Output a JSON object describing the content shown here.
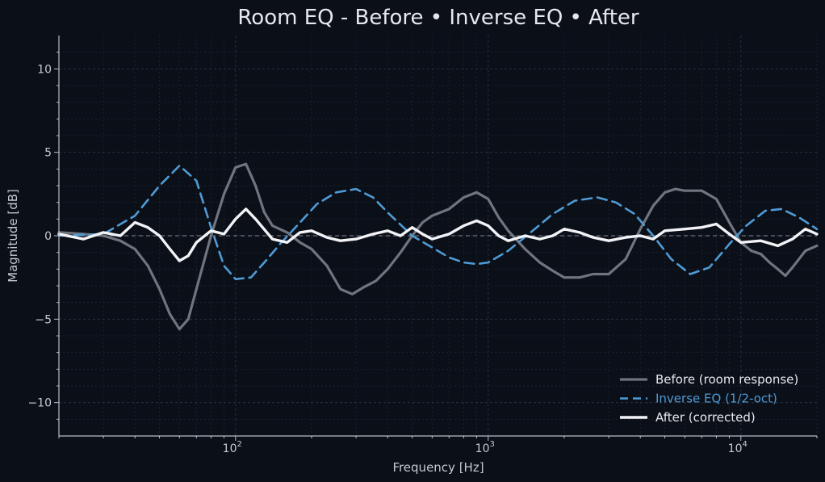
{
  "colors": {
    "background": "#0b0f17",
    "axes": "#b9bdc6",
    "text": "#e6e8ee",
    "tick_text": "#c5c9d1",
    "grid_major": "#263040",
    "grid_minor": "#1b2230",
    "zero_line": "#6b7280",
    "before": "#7a7f8a",
    "inverse": "#4f9bd6",
    "after": "#f2f3f6"
  },
  "chart_data": {
    "type": "line",
    "title": "Room EQ - Before • Inverse EQ • After",
    "xlabel": "Frequency [Hz]",
    "ylabel": "Magnitude [dB]",
    "xscale": "log",
    "xlim": [
      20,
      20000
    ],
    "ylim": [
      -12,
      12
    ],
    "x_major_ticks": [
      {
        "value": 100,
        "base": "10",
        "exp": "2"
      },
      {
        "value": 1000,
        "base": "10",
        "exp": "3"
      },
      {
        "value": 10000,
        "base": "10",
        "exp": "4"
      }
    ],
    "y_ticks": [
      {
        "value": 10,
        "label": "10"
      },
      {
        "value": 5,
        "label": "5"
      },
      {
        "value": 0,
        "label": "0"
      },
      {
        "value": -5,
        "label": "−5"
      },
      {
        "value": -10,
        "label": "−10"
      }
    ],
    "grid": true,
    "zero_reference_line": true,
    "legend_position": "lower-right",
    "series": [
      {
        "name": "Before (room response)",
        "style": "solid",
        "x": [
          20,
          25,
          30,
          35,
          40,
          45,
          50,
          55,
          60,
          65,
          70,
          80,
          90,
          100,
          110,
          120,
          130,
          140,
          160,
          180,
          200,
          230,
          260,
          290,
          320,
          360,
          400,
          450,
          500,
          550,
          600,
          700,
          800,
          900,
          1000,
          1100,
          1200,
          1400,
          1600,
          1800,
          2000,
          2300,
          2600,
          3000,
          3500,
          4000,
          4500,
          5000,
          5500,
          6000,
          7000,
          8000,
          9000,
          10000,
          11000,
          12000,
          13000,
          14000,
          15000,
          16000,
          18000,
          20000
        ],
        "y": [
          0.2,
          0.1,
          0.0,
          -0.3,
          -0.8,
          -1.8,
          -3.2,
          -4.7,
          -5.6,
          -5.0,
          -3.2,
          0.0,
          2.5,
          4.1,
          4.3,
          3.0,
          1.4,
          0.6,
          0.2,
          -0.4,
          -0.8,
          -1.8,
          -3.2,
          -3.5,
          -3.1,
          -2.7,
          -2.0,
          -1.0,
          0.0,
          0.8,
          1.2,
          1.6,
          2.3,
          2.6,
          2.2,
          1.1,
          0.3,
          -0.8,
          -1.6,
          -2.1,
          -2.5,
          -2.5,
          -2.3,
          -2.3,
          -1.4,
          0.4,
          1.8,
          2.6,
          2.8,
          2.7,
          2.7,
          2.2,
          0.8,
          -0.4,
          -0.9,
          -1.1,
          -1.6,
          -2.0,
          -2.4,
          -1.9,
          -0.9,
          -0.6
        ]
      },
      {
        "name": "Inverse EQ (1/2-oct)",
        "style": "dashed",
        "x": [
          20,
          30,
          40,
          50,
          60,
          70,
          80,
          90,
          100,
          115,
          130,
          150,
          180,
          210,
          250,
          300,
          350,
          400,
          500,
          600,
          700,
          800,
          900,
          1000,
          1200,
          1500,
          1800,
          2200,
          2700,
          3200,
          3800,
          4500,
          5300,
          6300,
          7500,
          9000,
          10500,
          12500,
          14500,
          17000,
          20000
        ],
        "y": [
          0.0,
          0.1,
          1.2,
          3.0,
          4.2,
          3.3,
          0.5,
          -1.8,
          -2.6,
          -2.5,
          -1.6,
          -0.5,
          0.8,
          1.9,
          2.6,
          2.8,
          2.3,
          1.4,
          0.0,
          -0.7,
          -1.3,
          -1.6,
          -1.7,
          -1.6,
          -0.9,
          0.3,
          1.3,
          2.1,
          2.3,
          2.0,
          1.3,
          0.0,
          -1.4,
          -2.3,
          -1.9,
          -0.5,
          0.6,
          1.5,
          1.6,
          1.1,
          0.4
        ]
      },
      {
        "name": "After (corrected)",
        "style": "solid-thick",
        "x": [
          20,
          25,
          30,
          35,
          40,
          45,
          50,
          55,
          60,
          65,
          70,
          80,
          90,
          100,
          110,
          120,
          140,
          160,
          180,
          200,
          230,
          260,
          300,
          350,
          400,
          450,
          500,
          550,
          600,
          700,
          800,
          900,
          1000,
          1100,
          1200,
          1400,
          1600,
          1800,
          2000,
          2300,
          2600,
          3000,
          3500,
          4000,
          4500,
          5000,
          6000,
          7000,
          8000,
          9000,
          10000,
          12000,
          14000,
          16000,
          18000,
          20000
        ],
        "y": [
          0.1,
          -0.2,
          0.2,
          0.0,
          0.8,
          0.5,
          0.0,
          -0.8,
          -1.5,
          -1.2,
          -0.4,
          0.3,
          0.1,
          1.0,
          1.6,
          1.0,
          -0.2,
          -0.4,
          0.2,
          0.3,
          -0.1,
          -0.3,
          -0.2,
          0.1,
          0.3,
          0.0,
          0.5,
          0.1,
          -0.2,
          0.1,
          0.6,
          0.9,
          0.6,
          0.0,
          -0.3,
          0.0,
          -0.2,
          0.0,
          0.4,
          0.2,
          -0.1,
          -0.3,
          -0.1,
          0.0,
          -0.2,
          0.3,
          0.4,
          0.5,
          0.7,
          0.1,
          -0.4,
          -0.3,
          -0.6,
          -0.2,
          0.4,
          0.1
        ]
      }
    ]
  }
}
